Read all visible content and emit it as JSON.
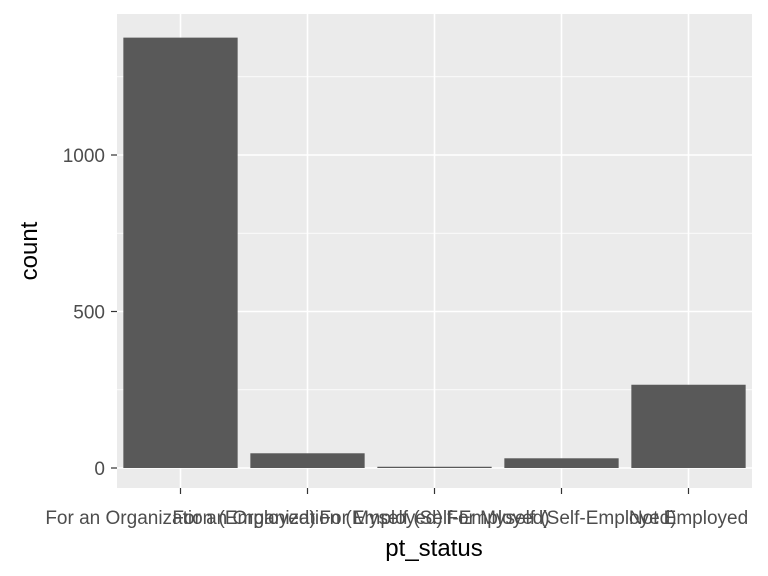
{
  "chart_data": {
    "type": "bar",
    "xlabel": "pt_status",
    "ylabel": "count",
    "categories": [
      "For an Organization (Employed)",
      "For an Organization (Employed)",
      "For Myself (Self-Employed)",
      "For Myself (Self-Employed)",
      "Not Employed"
    ],
    "values": [
      1375,
      47,
      4,
      31,
      266
    ],
    "ylim": [
      0,
      1450
    ],
    "yticks": [
      0,
      500,
      1000
    ],
    "grid": true,
    "bar_color": "#595959",
    "panel_color": "#ebebeb"
  }
}
